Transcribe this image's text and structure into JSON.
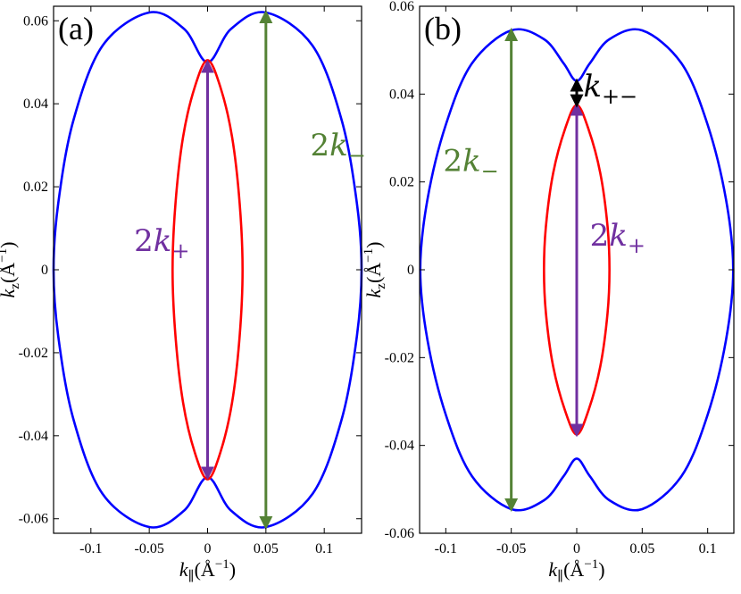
{
  "chart_data": [
    {
      "type": "line",
      "panel_label": "(a)",
      "xlabel": "k_∥(Å^−1)",
      "ylabel": "k_z(Å^−1)",
      "xlim": [
        -0.132,
        0.132
      ],
      "ylim": [
        -0.0635,
        0.0635
      ],
      "x_ticks": [
        -0.1,
        -0.05,
        0,
        0.05,
        0.1
      ],
      "x_tick_labels": [
        "-0.1",
        "-0.05",
        "0",
        "0.05",
        "0.1"
      ],
      "y_ticks": [
        -0.06,
        -0.04,
        -0.02,
        0,
        0.02,
        0.04,
        0.06
      ],
      "y_tick_labels": [
        "-0.06",
        "-0.04",
        "-0.02",
        "0",
        "0.02",
        "0.04",
        "0.06"
      ],
      "grid": false,
      "series": [
        {
          "kind": "outer",
          "color": "#0000ff",
          "points": [
            [
              0,
              0.05
            ],
            [
              -0.02,
              0.058
            ],
            [
              -0.05,
              0.062
            ],
            [
              -0.09,
              0.054
            ],
            [
              -0.115,
              0.036
            ],
            [
              -0.128,
              0.016
            ],
            [
              -0.132,
              0
            ],
            [
              -0.128,
              -0.016
            ],
            [
              -0.115,
              -0.036
            ],
            [
              -0.09,
              -0.054
            ],
            [
              -0.05,
              -0.062
            ],
            [
              -0.02,
              -0.058
            ],
            [
              0,
              -0.05
            ],
            [
              0.02,
              -0.058
            ],
            [
              0.05,
              -0.062
            ],
            [
              0.09,
              -0.054
            ],
            [
              0.115,
              -0.036
            ],
            [
              0.128,
              -0.016
            ],
            [
              0.132,
              0
            ],
            [
              0.128,
              0.016
            ],
            [
              0.115,
              0.036
            ],
            [
              0.09,
              0.054
            ],
            [
              0.05,
              0.062
            ],
            [
              0.02,
              0.058
            ],
            [
              0,
              0.05
            ]
          ]
        },
        {
          "kind": "inner",
          "color": "#ff0000",
          "points": [
            [
              0,
              0.0505
            ],
            [
              -0.011,
              0.044
            ],
            [
              -0.021,
              0.032
            ],
            [
              -0.0275,
              0.016
            ],
            [
              -0.03,
              0
            ],
            [
              -0.0275,
              -0.016
            ],
            [
              -0.021,
              -0.032
            ],
            [
              -0.011,
              -0.044
            ],
            [
              0,
              -0.0505
            ],
            [
              0.011,
              -0.044
            ],
            [
              0.021,
              -0.032
            ],
            [
              0.0275,
              -0.016
            ],
            [
              0.03,
              0
            ],
            [
              0.0275,
              0.016
            ],
            [
              0.021,
              0.032
            ],
            [
              0.011,
              0.044
            ],
            [
              0,
              0.0505
            ]
          ]
        }
      ],
      "arrows": [
        {
          "name": "2k+",
          "x": 0,
          "y1": -0.05,
          "y2": 0.05,
          "color": "#7030a0"
        },
        {
          "name": "2k−",
          "x": 0.05,
          "y1": -0.062,
          "y2": 0.062,
          "color": "#548235"
        }
      ],
      "annotations": [
        {
          "id": "2k-",
          "number": "2",
          "letter": "k",
          "sub": "−",
          "x": 0.088,
          "y": 0.0275,
          "color": "#548235"
        },
        {
          "id": "2k+",
          "number": "2",
          "letter": "k",
          "sub": "+",
          "x": -0.063,
          "y": 0.0045,
          "color": "#7030a0"
        }
      ]
    },
    {
      "type": "line",
      "panel_label": "(b)",
      "xlabel": "k_∥(Å^−1)",
      "ylabel": "k_z(Å^−1)",
      "xlim": [
        -0.12,
        0.12
      ],
      "ylim": [
        -0.06,
        0.06
      ],
      "x_ticks": [
        -0.1,
        -0.05,
        0,
        0.05,
        0.1
      ],
      "x_tick_labels": [
        "-0.1",
        "-0.05",
        "0",
        "0.05",
        "0.1"
      ],
      "y_ticks": [
        -0.06,
        -0.04,
        -0.02,
        0,
        0.02,
        0.04,
        0.06
      ],
      "y_tick_labels": [
        "-0.06",
        "-0.04",
        "-0.02",
        "0",
        "0.02",
        "0.04",
        "0.06"
      ],
      "grid": false,
      "series": [
        {
          "kind": "outer",
          "color": "#0000ff",
          "points": [
            [
              0,
              0.043
            ],
            [
              -0.01,
              0.047
            ],
            [
              -0.025,
              0.0525
            ],
            [
              -0.05,
              0.0545
            ],
            [
              -0.08,
              0.047
            ],
            [
              -0.1,
              0.033
            ],
            [
              -0.114,
              0.016
            ],
            [
              -0.1195,
              0
            ],
            [
              -0.114,
              -0.016
            ],
            [
              -0.1,
              -0.033
            ],
            [
              -0.08,
              -0.047
            ],
            [
              -0.05,
              -0.0545
            ],
            [
              -0.025,
              -0.0525
            ],
            [
              -0.01,
              -0.047
            ],
            [
              0,
              -0.043
            ],
            [
              0.01,
              -0.047
            ],
            [
              0.025,
              -0.0525
            ],
            [
              0.05,
              -0.0545
            ],
            [
              0.08,
              -0.047
            ],
            [
              0.1,
              -0.033
            ],
            [
              0.114,
              -0.016
            ],
            [
              0.1195,
              0
            ],
            [
              0.114,
              0.016
            ],
            [
              0.1,
              0.033
            ],
            [
              0.08,
              0.047
            ],
            [
              0.05,
              0.0545
            ],
            [
              0.025,
              0.0525
            ],
            [
              0.01,
              0.047
            ],
            [
              0,
              0.043
            ]
          ]
        },
        {
          "kind": "inner",
          "color": "#ff0000",
          "points": [
            [
              0,
              0.0375
            ],
            [
              -0.009,
              0.032
            ],
            [
              -0.018,
              0.022
            ],
            [
              -0.0235,
              0.01
            ],
            [
              -0.025,
              0
            ],
            [
              -0.0235,
              -0.01
            ],
            [
              -0.018,
              -0.022
            ],
            [
              -0.009,
              -0.032
            ],
            [
              0,
              -0.0375
            ],
            [
              0.009,
              -0.032
            ],
            [
              0.018,
              -0.022
            ],
            [
              0.0235,
              -0.01
            ],
            [
              0.025,
              0
            ],
            [
              0.0235,
              0.01
            ],
            [
              0.018,
              0.022
            ],
            [
              0.009,
              0.032
            ],
            [
              0,
              0.0375
            ]
          ]
        }
      ],
      "arrows": [
        {
          "name": "2k−",
          "x": -0.05,
          "y1": -0.0545,
          "y2": 0.0545,
          "color": "#548235"
        },
        {
          "name": "2k+",
          "x": 0,
          "y1": -0.0375,
          "y2": 0.0375,
          "color": "#7030a0"
        },
        {
          "name": "k+−",
          "x": 0,
          "y1": 0.0375,
          "y2": 0.043,
          "color": "#000000"
        }
      ],
      "annotations": [
        {
          "id": "2k-",
          "number": "2",
          "letter": "k",
          "sub": "−",
          "x": -0.102,
          "y": 0.0225,
          "color": "#548235"
        },
        {
          "id": "2k+",
          "number": "2",
          "letter": "k",
          "sub": "+",
          "x": 0.01,
          "y": 0.0055,
          "color": "#7030a0"
        },
        {
          "id": "k+-",
          "number": "",
          "letter": "k",
          "sub": "+−",
          "x": 0.005,
          "y": 0.0395,
          "color": "#000000"
        }
      ]
    }
  ]
}
